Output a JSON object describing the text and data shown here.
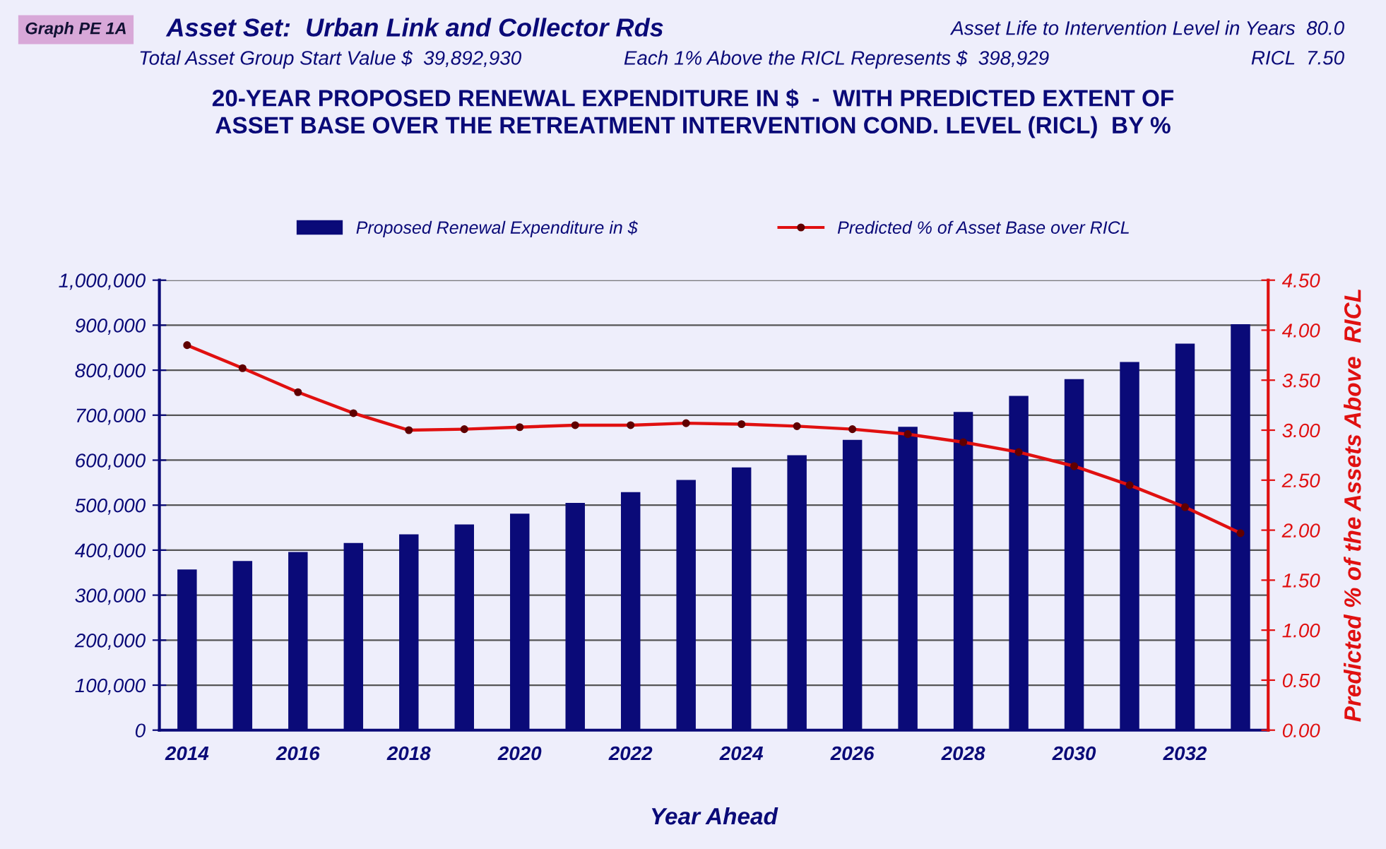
{
  "chart_data": {
    "type": "bar",
    "title": "20-YEAR PROPOSED RENEWAL EXPENDITURE IN $  -  WITH PREDICTED EXTENT OF\nASSET BASE OVER THE RETREATMENT INTERVENTION COND. LEVEL (RICL)  BY %",
    "xlabel": "Year Ahead",
    "y2label": "Predicted % of the Assets Above  RICL",
    "annotations": [
      "Graph PE 1A",
      "Asset Set:  Urban Link and Collector Rds",
      "Asset Life to Intervention Level in Years  80.0",
      "Total Asset Group Start Value $  39,892,930",
      "Each 1% Above the RICL Represents $  398,929",
      "RICL  7.50"
    ],
    "categories": [
      "2014",
      null,
      "2016",
      null,
      "2018",
      null,
      "2020",
      null,
      "2022",
      null,
      "2024",
      null,
      "2026",
      null,
      "2028",
      null,
      "2030",
      null,
      "2032",
      null
    ],
    "series": [
      {
        "name": "Proposed Renewal Expenditure in $",
        "color": "#0a0a78",
        "values": [
          357000,
          376000,
          396000,
          416000,
          435000,
          457000,
          481000,
          505000,
          529000,
          556000,
          584000,
          611000,
          645000,
          674000,
          707000,
          743000,
          780000,
          818000,
          859000,
          902000
        ]
      },
      {
        "name": "Predicted % of Asset Base over RICL",
        "type": "line",
        "axis": "y2",
        "color": "#e01010",
        "marker": "circle",
        "values": [
          3.85,
          3.62,
          3.38,
          3.17,
          3.0,
          3.01,
          3.03,
          3.05,
          3.05,
          3.07,
          3.06,
          3.04,
          3.01,
          2.96,
          2.88,
          2.78,
          2.64,
          2.45,
          2.23,
          1.97
        ]
      }
    ],
    "ylim": [
      0,
      1000000
    ],
    "yticks": [
      {
        "value": 0,
        "label": "0"
      },
      {
        "value": 100000,
        "label": "100,000"
      },
      {
        "value": 200000,
        "label": "200,000"
      },
      {
        "value": 300000,
        "label": "300,000"
      },
      {
        "value": 400000,
        "label": "400,000"
      },
      {
        "value": 500000,
        "label": "500,000"
      },
      {
        "value": 600000,
        "label": "600,000"
      },
      {
        "value": 700000,
        "label": "700,000"
      },
      {
        "value": 800000,
        "label": "800,000"
      },
      {
        "value": 900000,
        "label": "900,000"
      },
      {
        "value": 1000000,
        "label": "1,000,000"
      }
    ],
    "y2lim": [
      0,
      4.5
    ],
    "y2ticks": [
      {
        "value": 0,
        "label": "0.00"
      },
      {
        "value": 0.5,
        "label": "0.50"
      },
      {
        "value": 1,
        "label": "1.00"
      },
      {
        "value": 1.5,
        "label": "1.50"
      },
      {
        "value": 2,
        "label": "2.00"
      },
      {
        "value": 2.5,
        "label": "2.50"
      },
      {
        "value": 3,
        "label": "3.00"
      },
      {
        "value": 3.5,
        "label": "3.50"
      },
      {
        "value": 4,
        "label": "4.00"
      },
      {
        "value": 4.5,
        "label": "4.50"
      }
    ],
    "grid": "y",
    "legend": "top"
  }
}
